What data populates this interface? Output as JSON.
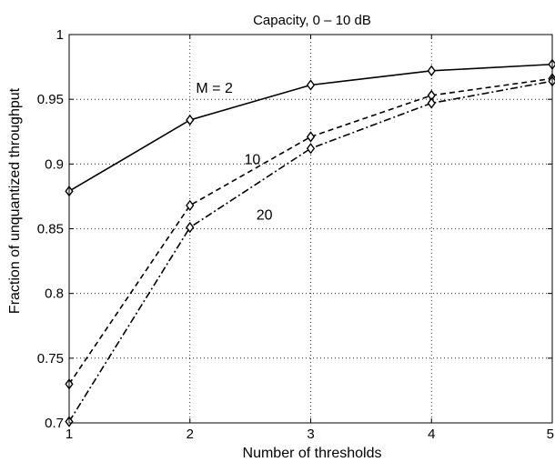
{
  "chart_data": {
    "type": "line",
    "title": "Capacity, 0 – 10 dB",
    "xlabel": "Number of thresholds",
    "ylabel": "Fraction of unquantized throughput",
    "xlim": [
      1,
      5
    ],
    "ylim": [
      0.7,
      1.0
    ],
    "xticks": [
      1,
      2,
      3,
      4,
      5
    ],
    "yticks": [
      0.7,
      0.75,
      0.8,
      0.85,
      0.9,
      0.95,
      1.0
    ],
    "ytick_labels": [
      "0.7",
      "0.75",
      "0.8",
      "0.85",
      "0.9",
      "0.95",
      "1"
    ],
    "grid": true,
    "marker": "diamond",
    "x": [
      1,
      2,
      3,
      4,
      5
    ],
    "series": [
      {
        "name": "M = 2",
        "style": "solid",
        "values": [
          0.879,
          0.934,
          0.961,
          0.972,
          0.977
        ]
      },
      {
        "name": "10",
        "style": "dashed",
        "values": [
          0.73,
          0.868,
          0.921,
          0.953,
          0.966
        ]
      },
      {
        "name": "20",
        "style": "dashdot",
        "values": [
          0.701,
          0.851,
          0.912,
          0.947,
          0.964
        ]
      }
    ],
    "annotations": [
      {
        "text": "M = 2",
        "x": 2.05,
        "y": 0.955
      },
      {
        "text": "10",
        "x": 2.45,
        "y": 0.9
      },
      {
        "text": "20",
        "x": 2.55,
        "y": 0.857
      }
    ]
  }
}
